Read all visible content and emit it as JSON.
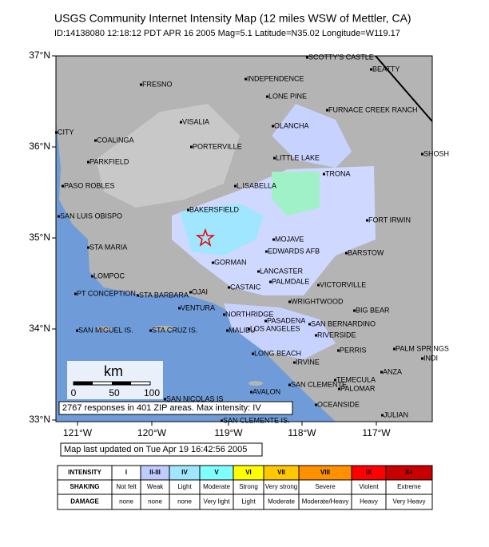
{
  "header": {
    "title": "USGS Community Internet Intensity Map (12 miles WSW of Mettler, CA)",
    "subtitle": "ID:14138080 12:18:12 PDT APR 16 2005 Mag=5.1 Latitude=N35.02 Longitude=W119.17"
  },
  "map": {
    "lat_ticks": [
      "37°N",
      "36°N",
      "35°N",
      "34°N",
      "33°N"
    ],
    "lon_ticks": [
      "121°W",
      "120°W",
      "119°W",
      "118°W",
      "117°W"
    ],
    "places": [
      "SCOTTY'S CASTLE",
      "BEATTY",
      "FRESNO",
      "INDEPENDENCE",
      "LONE PINE",
      "FURNACE CREEK RANCH",
      "VISALIA",
      "OLANCHA",
      "CITY",
      "COALINGA",
      "PORTERVILLE",
      "SHOSH",
      "LITTLE LAKE",
      "PARKFIELD",
      "TRONA",
      "PASO ROBLES",
      "L.ISABELLA",
      "BAKERSFIELD",
      "SAN LUIS OBISPO",
      "FORT IRWIN",
      "MOJAVE",
      "STA MARIA",
      "EDWARDS AFB",
      "BARSTOW",
      "GORMAN",
      "LOMPOC",
      "LANCASTER",
      "PALMDALE",
      "VICTORVILLE",
      "CASTAIC",
      "PT CONCEPTION",
      "STA BARBARA",
      "OJAI",
      "WRIGHTWOOD",
      "VENTURA",
      "BIG BEAR",
      "NORTHRIDGE",
      "PASADENA",
      "SAN BERNARDINO",
      "SAN MIGUEL IS.",
      "STA CRUZ IS.",
      "MALIBU",
      "LOS ANGELES",
      "RIVERSIDE",
      "PERRIS",
      "PALM SPRINGS",
      "LONG BEACH",
      "INDI",
      "IRVINE",
      "ANZA",
      "TEMECULA",
      "SAN CLEMENTE",
      "PALOMAR",
      "AVALON",
      "SAN NICOLAS IS",
      "OCEANSIDE",
      "JULIAN",
      "SAN CLEMENTE IS."
    ],
    "scale": {
      "title": "km",
      "ticks": [
        "0",
        "50",
        "100"
      ]
    },
    "responses": "2767 responses in 401 ZIP areas. Max intensity: IV",
    "updated": "Map last updated on Tue Apr 19 16:42:56 2005"
  },
  "legend": {
    "row_headers": [
      "INTENSITY",
      "SHAKING",
      "DAMAGE"
    ],
    "intensity": [
      "I",
      "II-III",
      "IV",
      "V",
      "VI",
      "VII",
      "VIII",
      "IX",
      "X+"
    ],
    "colors": [
      "#ffffff",
      "#bfccff",
      "#a0e6ff",
      "#80ffff",
      "#ffff00",
      "#ffc800",
      "#ff9100",
      "#ff0000",
      "#c80000"
    ],
    "shaking": [
      "Not felt",
      "Weak",
      "Light",
      "Moderate",
      "Strong",
      "Very strong",
      "Severe",
      "Violent",
      "Extreme"
    ],
    "damage": [
      "none",
      "none",
      "none",
      "Very light",
      "Light",
      "Moderate",
      "Moderate/Heavy",
      "Heavy",
      "Very Heavy"
    ]
  }
}
